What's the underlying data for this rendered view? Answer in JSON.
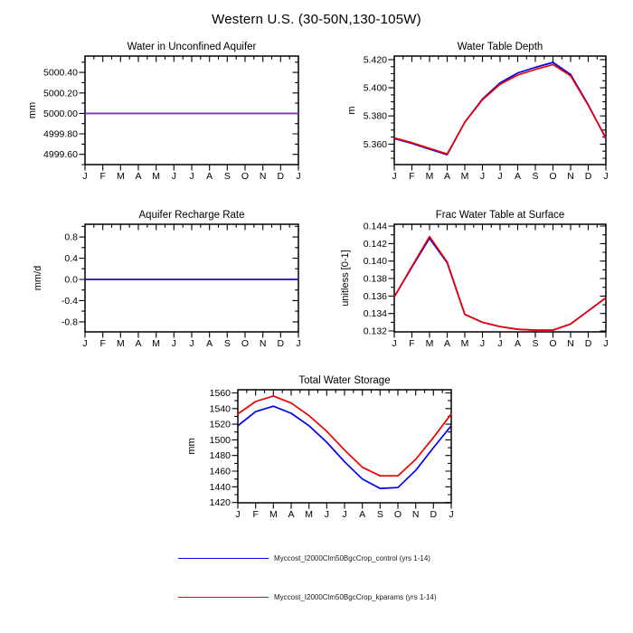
{
  "page_title": "Western U.S. (30-50N,130-105W)",
  "colors": {
    "control_line": "#0000ee",
    "kparams_line": "#ee0000",
    "overlap_line_aquifer": "#7b3ca8",
    "overlap_line_recharge": "#3a14c8",
    "axis": "#000000",
    "background": "#ffffff"
  },
  "legend": {
    "items": [
      {
        "name": "control",
        "label": "Myccost_I2000Clm50BgcCrop_control (yrs 1-14)",
        "color": "#0000ee"
      },
      {
        "name": "kparams",
        "label": "Myccost_I2000Clm50BgcCrop_kparams (yrs 1-14)",
        "color": "#ee0000"
      }
    ]
  },
  "chart_data": [
    {
      "type": "line",
      "title": "Water in Unconfined Aquifer",
      "ylabel": "mm",
      "categories": [
        "J",
        "F",
        "M",
        "A",
        "M",
        "J",
        "J",
        "A",
        "S",
        "O",
        "N",
        "D",
        "J"
      ],
      "ylim": [
        4999.5,
        5000.56
      ],
      "ytick_values": [
        4999.6,
        4999.8,
        5000.0,
        5000.2,
        5000.4
      ],
      "ytick_labels": [
        "4999.60",
        "4999.80",
        "5000.00",
        "5000.20",
        "5000.40"
      ],
      "minor_step": 0.1,
      "line_color_override": "#7b3ca8",
      "series": [
        {
          "name": "Myccost_I2000Clm50BgcCrop_control (yrs 1-14)",
          "color": "#0000ee",
          "values": [
            5000.0,
            5000.0,
            5000.0,
            5000.0,
            5000.0,
            5000.0,
            5000.0,
            5000.0,
            5000.0,
            5000.0,
            5000.0,
            5000.0,
            5000.0
          ]
        },
        {
          "name": "Myccost_I2000Clm50BgcCrop_kparams (yrs 1-14)",
          "color": "#ee0000",
          "values": [
            5000.0,
            5000.0,
            5000.0,
            5000.0,
            5000.0,
            5000.0,
            5000.0,
            5000.0,
            5000.0,
            5000.0,
            5000.0,
            5000.0,
            5000.0
          ]
        }
      ]
    },
    {
      "type": "line",
      "title": "Water Table Depth",
      "ylabel": "m",
      "categories": [
        "J",
        "F",
        "M",
        "A",
        "M",
        "J",
        "J",
        "A",
        "S",
        "O",
        "N",
        "D",
        "J"
      ],
      "ylim": [
        5.3455,
        5.4225
      ],
      "ytick_values": [
        5.36,
        5.38,
        5.4,
        5.42
      ],
      "ytick_labels": [
        "5.360",
        "5.380",
        "5.400",
        "5.420"
      ],
      "minor_step": 0.005,
      "series": [
        {
          "name": "Myccost_I2000Clm50BgcCrop_control (yrs 1-14)",
          "color": "#0000ee",
          "values": [
            5.364,
            5.3605,
            5.3565,
            5.3525,
            5.3755,
            5.392,
            5.4035,
            5.4105,
            5.4145,
            5.418,
            5.4095,
            5.388,
            5.364
          ]
        },
        {
          "name": "Myccost_I2000Clm50BgcCrop_kparams (yrs 1-14)",
          "color": "#ee0000",
          "values": [
            5.3645,
            5.361,
            5.357,
            5.353,
            5.3755,
            5.3915,
            5.4025,
            5.409,
            5.413,
            5.4165,
            5.4085,
            5.3875,
            5.3645
          ]
        }
      ]
    },
    {
      "type": "line",
      "title": "Aquifer Recharge Rate",
      "ylabel": "mm/d",
      "categories": [
        "J",
        "F",
        "M",
        "A",
        "M",
        "J",
        "J",
        "A",
        "S",
        "O",
        "N",
        "D",
        "J"
      ],
      "ylim": [
        -0.99,
        1.04
      ],
      "ytick_values": [
        -0.8,
        -0.4,
        0.0,
        0.4,
        0.8
      ],
      "ytick_labels": [
        "-0.8",
        "-0.4",
        "0.0",
        "0.4",
        "0.8"
      ],
      "minor_step": 0.2,
      "line_color_override": "#3a14c8",
      "series": [
        {
          "name": "Myccost_I2000Clm50BgcCrop_control (yrs 1-14)",
          "color": "#0000ee",
          "values": [
            0.0,
            0.0,
            0.0,
            0.0,
            0.0,
            0.0,
            0.0,
            0.0,
            0.0,
            0.0,
            0.0,
            0.0,
            0.0
          ]
        },
        {
          "name": "Myccost_I2000Clm50BgcCrop_kparams (yrs 1-14)",
          "color": "#ee0000",
          "values": [
            0.0,
            0.0,
            0.0,
            0.0,
            0.0,
            0.0,
            0.0,
            0.0,
            0.0,
            0.0,
            0.0,
            0.0,
            0.0
          ]
        }
      ]
    },
    {
      "type": "line",
      "title": "Frac Water Table at Surface",
      "ylabel": "unitless [0-1]",
      "categories": [
        "J",
        "F",
        "M",
        "A",
        "M",
        "J",
        "J",
        "A",
        "S",
        "O",
        "N",
        "D",
        "J"
      ],
      "ylim": [
        0.1319,
        0.14421
      ],
      "ytick_values": [
        0.132,
        0.134,
        0.136,
        0.138,
        0.14,
        0.142,
        0.144
      ],
      "ytick_labels": [
        "0.132",
        "0.134",
        "0.136",
        "0.138",
        "0.140",
        "0.142",
        "0.144"
      ],
      "minor_step": 0.001,
      "series": [
        {
          "name": "Myccost_I2000Clm50BgcCrop_control (yrs 1-14)",
          "color": "#0000ee",
          "values": [
            0.1359,
            0.1393,
            0.1426,
            0.1398,
            0.1339,
            0.133,
            0.1325,
            0.1322,
            0.1321,
            0.1321,
            0.1328,
            0.1343,
            0.1358
          ]
        },
        {
          "name": "Myccost_I2000Clm50BgcCrop_kparams (yrs 1-14)",
          "color": "#ee0000",
          "values": [
            0.1359,
            0.1394,
            0.1428,
            0.1399,
            0.1339,
            0.133,
            0.1325,
            0.1322,
            0.1321,
            0.1321,
            0.1328,
            0.1343,
            0.1358
          ]
        }
      ]
    },
    {
      "type": "line",
      "title": "Total Water Storage",
      "ylabel": "mm",
      "categories": [
        "J",
        "F",
        "M",
        "A",
        "M",
        "J",
        "J",
        "A",
        "S",
        "O",
        "N",
        "D",
        "J"
      ],
      "ylim": [
        1419.6,
        1564.0
      ],
      "ytick_values": [
        1420,
        1440,
        1460,
        1480,
        1500,
        1520,
        1540,
        1560
      ],
      "ytick_labels": [
        "1420",
        "1440",
        "1460",
        "1480",
        "1500",
        "1520",
        "1540",
        "1560"
      ],
      "minor_step": 10,
      "series": [
        {
          "name": "Myccost_I2000Clm50BgcCrop_control (yrs 1-14)",
          "color": "#0000ee",
          "values": [
            1518,
            1536,
            1543,
            1534,
            1518,
            1497,
            1472,
            1450,
            1438,
            1439,
            1461,
            1490,
            1518
          ]
        },
        {
          "name": "Myccost_I2000Clm50BgcCrop_kparams (yrs 1-14)",
          "color": "#ee0000",
          "values": [
            1533,
            1549,
            1556,
            1547,
            1531,
            1511,
            1487,
            1465,
            1454,
            1454,
            1475,
            1503,
            1533
          ]
        }
      ]
    }
  ]
}
